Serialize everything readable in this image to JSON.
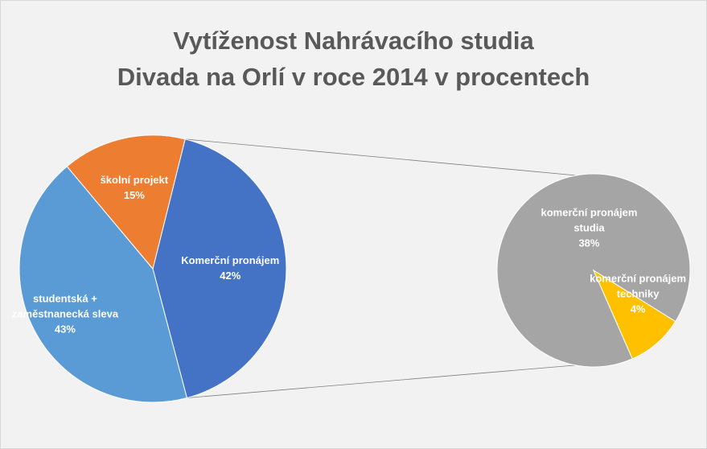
{
  "chart_data": {
    "type": "pie",
    "subtype": "pie-of-pie",
    "title_line1": "Vytíženost Nahrávacího studia",
    "title_line2": "Divada na Orlí v roce 2014 v procentech",
    "main_pie": [
      {
        "name_lines": [
          "Komerční pronájem"
        ],
        "value": 42,
        "value_label": "42%",
        "color": "#4472c4"
      },
      {
        "name_lines": [
          "studentská +",
          "zaměstnanecká sleva"
        ],
        "value": 43,
        "value_label": "43%",
        "color": "#5b9bd5"
      },
      {
        "name_lines": [
          "školní projekt"
        ],
        "value": 15,
        "value_label": "15%",
        "color": "#ed7d31"
      }
    ],
    "secondary_pie": [
      {
        "name_lines": [
          "komerční pronájem",
          "studia"
        ],
        "value": 38,
        "value_label": "38%",
        "color": "#a5a5a5"
      },
      {
        "name_lines": [
          "komerční pronájem",
          "techniky"
        ],
        "value": 4,
        "value_label": "4%",
        "color": "#ffc000"
      }
    ],
    "legend": "none"
  },
  "colors": {
    "background": "#f2f2f2",
    "title": "#595959",
    "label": "#ffffff",
    "connector": "#7f7f7f"
  }
}
